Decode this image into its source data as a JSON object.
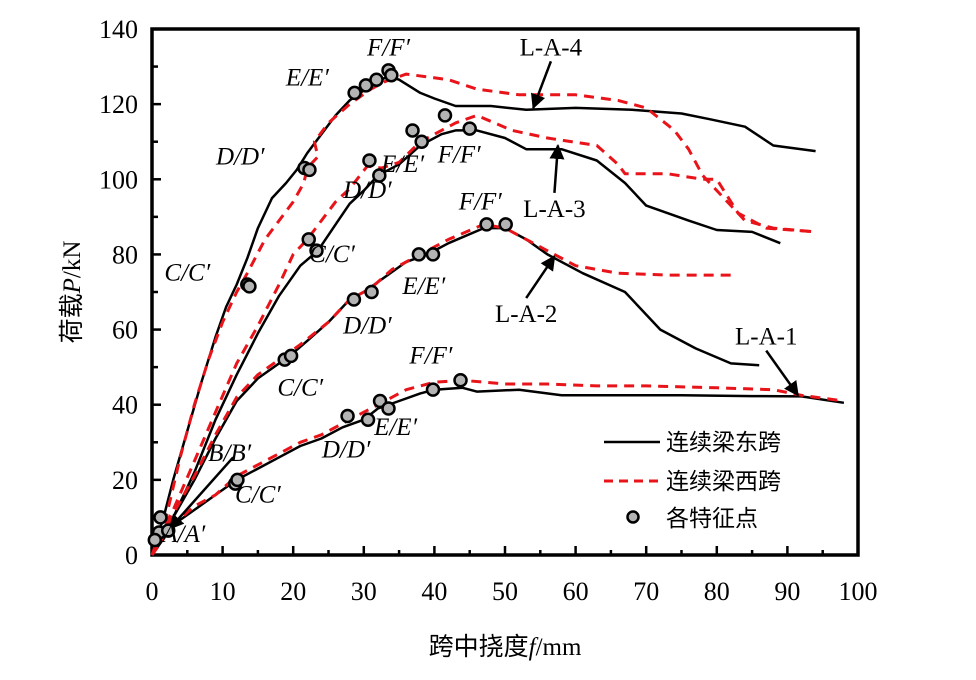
{
  "chart_data": {
    "type": "line",
    "title": "",
    "xlabel_prefix": "跨中挠度",
    "xlabel_var": "f",
    "xlabel_unit": "/mm",
    "ylabel_prefix": "荷载",
    "ylabel_var": "P",
    "ylabel_unit": "/kN",
    "xlim": [
      0,
      100
    ],
    "ylim": [
      0,
      140
    ],
    "xticks": [
      0,
      10,
      20,
      30,
      40,
      50,
      60,
      70,
      80,
      90,
      100
    ],
    "yticks": [
      0,
      20,
      40,
      60,
      80,
      100,
      120,
      140
    ],
    "grid": false,
    "legend_position": "bottom-right",
    "legend": [
      {
        "label": "连续梁东跨",
        "style": "solid",
        "color": "#000000"
      },
      {
        "label": "连续梁西跨",
        "style": "dashed",
        "color": "#e8141a"
      },
      {
        "label": "各特征点",
        "style": "marker",
        "color": "#b4b4b4"
      }
    ],
    "series": [
      {
        "name": "L-A-4 东跨",
        "specimen": "L-A-4",
        "span": "east",
        "style": "solid",
        "color": "#000000",
        "points": [
          [
            0,
            0
          ],
          [
            0.5,
            4
          ],
          [
            1.5,
            9
          ],
          [
            3,
            20
          ],
          [
            5,
            33
          ],
          [
            7,
            46
          ],
          [
            9,
            58
          ],
          [
            10.5,
            66
          ],
          [
            12,
            72
          ],
          [
            13.5,
            79
          ],
          [
            15,
            87
          ],
          [
            17,
            95
          ],
          [
            19,
            99
          ],
          [
            20.5,
            102.5
          ],
          [
            22,
            107
          ],
          [
            24,
            112
          ],
          [
            26,
            117
          ],
          [
            28,
            121
          ],
          [
            29.5,
            123
          ],
          [
            31,
            125
          ],
          [
            32.5,
            126.5
          ],
          [
            33.5,
            127.5
          ],
          [
            35,
            126.5
          ],
          [
            38,
            123
          ],
          [
            40,
            121.5
          ],
          [
            43,
            119.5
          ],
          [
            48,
            119.5
          ],
          [
            53,
            118.5
          ],
          [
            60,
            119
          ],
          [
            68,
            118.5
          ],
          [
            75,
            117.5
          ],
          [
            79,
            116
          ],
          [
            84,
            114
          ],
          [
            88,
            109
          ],
          [
            94,
            107.5
          ]
        ]
      },
      {
        "name": "L-A-4 西跨",
        "specimen": "L-A-4",
        "span": "west",
        "style": "dashed",
        "color": "#e8141a",
        "points": [
          [
            0,
            0
          ],
          [
            0.8,
            4
          ],
          [
            2,
            10
          ],
          [
            4,
            26
          ],
          [
            6,
            40
          ],
          [
            8,
            52
          ],
          [
            10,
            62
          ],
          [
            12,
            70
          ],
          [
            13.5,
            75
          ],
          [
            16,
            84
          ],
          [
            18,
            89
          ],
          [
            20,
            94
          ],
          [
            21.5,
            99
          ],
          [
            22,
            103
          ],
          [
            23.5,
            106
          ],
          [
            23,
            110
          ],
          [
            25,
            115
          ],
          [
            28,
            120
          ],
          [
            31,
            124
          ],
          [
            33,
            126
          ],
          [
            36,
            128
          ],
          [
            42,
            126.5
          ],
          [
            46,
            124
          ],
          [
            52,
            122.5
          ],
          [
            60,
            122.5
          ],
          [
            66,
            121
          ],
          [
            70,
            119
          ],
          [
            74,
            113
          ],
          [
            76,
            108
          ],
          [
            78,
            101
          ],
          [
            81,
            95
          ],
          [
            84,
            89
          ],
          [
            88,
            87
          ],
          [
            94,
            86
          ]
        ]
      },
      {
        "name": "L-A-3 东跨",
        "specimen": "L-A-3",
        "span": "east",
        "style": "solid",
        "color": "#000000",
        "points": [
          [
            0,
            0
          ],
          [
            1,
            4
          ],
          [
            3,
            10
          ],
          [
            6,
            22
          ],
          [
            9,
            36
          ],
          [
            12,
            48
          ],
          [
            15,
            59
          ],
          [
            18,
            69
          ],
          [
            21,
            77
          ],
          [
            23.5,
            81
          ],
          [
            26,
            88
          ],
          [
            28,
            93.5
          ],
          [
            30,
            97
          ],
          [
            32,
            101
          ],
          [
            35,
            104
          ],
          [
            38,
            109
          ],
          [
            41,
            112
          ],
          [
            43,
            113
          ],
          [
            46,
            113
          ],
          [
            50,
            111
          ],
          [
            53,
            108
          ],
          [
            58,
            108
          ],
          [
            63,
            105
          ],
          [
            67,
            99
          ],
          [
            70,
            93
          ],
          [
            76,
            89
          ],
          [
            80,
            86.5
          ],
          [
            85,
            86
          ],
          [
            89,
            83
          ]
        ]
      },
      {
        "name": "L-A-3 西跨",
        "specimen": "L-A-3",
        "span": "west",
        "style": "dashed",
        "color": "#e8141a",
        "points": [
          [
            0,
            0
          ],
          [
            1,
            5
          ],
          [
            3,
            12
          ],
          [
            6,
            25
          ],
          [
            9,
            38
          ],
          [
            12,
            51
          ],
          [
            15,
            61
          ],
          [
            18,
            72
          ],
          [
            20,
            80
          ],
          [
            22,
            84
          ],
          [
            24,
            89
          ],
          [
            26,
            94
          ],
          [
            28,
            97.5
          ],
          [
            30.5,
            103.5
          ],
          [
            32.5,
            103
          ],
          [
            35,
            104.5
          ],
          [
            38,
            110
          ],
          [
            40,
            112
          ],
          [
            43,
            115
          ],
          [
            46,
            117
          ],
          [
            51,
            113
          ],
          [
            56,
            111
          ],
          [
            63,
            109
          ],
          [
            66,
            104
          ],
          [
            67,
            101.5
          ],
          [
            73,
            101.5
          ],
          [
            78,
            100
          ],
          [
            80,
            100
          ],
          [
            83,
            91
          ],
          [
            87,
            87
          ],
          [
            94,
            86
          ]
        ]
      },
      {
        "name": "L-A-2 东跨",
        "specimen": "L-A-2",
        "span": "east",
        "style": "solid",
        "color": "#000000",
        "points": [
          [
            0,
            0
          ],
          [
            1.5,
            5
          ],
          [
            3,
            10
          ],
          [
            6,
            20
          ],
          [
            9,
            31
          ],
          [
            12,
            41
          ],
          [
            15,
            47
          ],
          [
            18,
            51
          ],
          [
            19.5,
            53
          ],
          [
            22,
            57
          ],
          [
            25,
            62
          ],
          [
            28,
            68
          ],
          [
            30,
            70
          ],
          [
            33,
            74
          ],
          [
            36,
            78
          ],
          [
            39,
            80
          ],
          [
            42,
            83
          ],
          [
            47,
            87
          ],
          [
            50,
            87
          ],
          [
            53,
            84
          ],
          [
            56,
            80
          ],
          [
            61,
            75
          ],
          [
            67,
            70
          ],
          [
            72,
            60
          ],
          [
            77,
            55
          ],
          [
            82,
            51
          ],
          [
            86,
            50.5
          ]
        ]
      },
      {
        "name": "L-A-2 西跨",
        "specimen": "L-A-2",
        "span": "west",
        "style": "dashed",
        "color": "#e8141a",
        "points": [
          [
            0,
            0
          ],
          [
            1.5,
            5
          ],
          [
            3,
            11
          ],
          [
            6,
            21
          ],
          [
            9,
            32
          ],
          [
            12,
            42
          ],
          [
            15,
            48
          ],
          [
            18,
            52
          ],
          [
            21,
            56
          ],
          [
            25,
            62
          ],
          [
            28,
            68
          ],
          [
            31,
            71
          ],
          [
            34,
            76
          ],
          [
            38,
            80
          ],
          [
            42,
            84
          ],
          [
            47,
            88
          ],
          [
            50,
            87
          ],
          [
            55,
            82
          ],
          [
            60,
            77
          ],
          [
            66,
            75
          ],
          [
            73,
            74.5
          ],
          [
            82,
            74.5
          ]
        ]
      },
      {
        "name": "L-A-1 东跨",
        "specimen": "L-A-1",
        "span": "east",
        "style": "solid",
        "color": "#000000",
        "points": [
          [
            0,
            0
          ],
          [
            1.5,
            4
          ],
          [
            3,
            8
          ],
          [
            6,
            12
          ],
          [
            9,
            16
          ],
          [
            12,
            20
          ],
          [
            15,
            23
          ],
          [
            18,
            26
          ],
          [
            21,
            29
          ],
          [
            24,
            31
          ],
          [
            27,
            34
          ],
          [
            30,
            36
          ],
          [
            32,
            39
          ],
          [
            35,
            41
          ],
          [
            38,
            43
          ],
          [
            40,
            44
          ],
          [
            44,
            44.5
          ],
          [
            46,
            43.5
          ],
          [
            52,
            44
          ],
          [
            58,
            42.5
          ],
          [
            65,
            42.5
          ],
          [
            75,
            42.5
          ],
          [
            85,
            42.3
          ],
          [
            92,
            42.2
          ],
          [
            98,
            40.5
          ]
        ]
      },
      {
        "name": "L-A-1 西跨",
        "specimen": "L-A-1",
        "span": "west",
        "style": "dashed",
        "color": "#e8141a",
        "points": [
          [
            0,
            0
          ],
          [
            1.5,
            4
          ],
          [
            3,
            8
          ],
          [
            6,
            13
          ],
          [
            9,
            16
          ],
          [
            12,
            21
          ],
          [
            15,
            24
          ],
          [
            18,
            27
          ],
          [
            21,
            30
          ],
          [
            24,
            32
          ],
          [
            27,
            35
          ],
          [
            30,
            38
          ],
          [
            33,
            41
          ],
          [
            36,
            44
          ],
          [
            40,
            46
          ],
          [
            44,
            46.5
          ],
          [
            50,
            45.5
          ],
          [
            56,
            45.5
          ],
          [
            63,
            45
          ],
          [
            70,
            45
          ],
          [
            80,
            44.5
          ],
          [
            88,
            44
          ],
          [
            92,
            42.5
          ],
          [
            98,
            41
          ]
        ]
      }
    ],
    "feature_points": [
      [
        1.2,
        10
      ],
      [
        1.0,
        6
      ],
      [
        2.3,
        6.5
      ],
      [
        0.4,
        4
      ],
      [
        13.5,
        72
      ],
      [
        13.8,
        71.5
      ],
      [
        21.6,
        103
      ],
      [
        22.3,
        102.5
      ],
      [
        28.7,
        123
      ],
      [
        30.3,
        125
      ],
      [
        31.8,
        126.5
      ],
      [
        33.5,
        129
      ],
      [
        33.9,
        127.7
      ],
      [
        22.2,
        84
      ],
      [
        23.3,
        81
      ],
      [
        30.8,
        105
      ],
      [
        32.2,
        101
      ],
      [
        36.9,
        113
      ],
      [
        38.2,
        110
      ],
      [
        41.5,
        117
      ],
      [
        45,
        113.5
      ],
      [
        18.8,
        52
      ],
      [
        19.7,
        53
      ],
      [
        28.6,
        68
      ],
      [
        31.1,
        70
      ],
      [
        37.8,
        80
      ],
      [
        39.8,
        80
      ],
      [
        47.4,
        88
      ],
      [
        50.1,
        88
      ],
      [
        11.8,
        19
      ],
      [
        12.1,
        20
      ],
      [
        27.7,
        37
      ],
      [
        30.6,
        36
      ],
      [
        32.3,
        41
      ],
      [
        33.5,
        39
      ],
      [
        39.8,
        44
      ],
      [
        43.7,
        46.5
      ]
    ],
    "annotations": [
      {
        "text": "A/A′",
        "x": 4.5,
        "y": 3.5
      },
      {
        "text": "B/B′",
        "x": 11,
        "y": 25
      },
      {
        "text": "C/C′",
        "x": 15,
        "y": 14
      },
      {
        "text": "D/D′",
        "x": 27.5,
        "y": 26
      },
      {
        "text": "E/E′",
        "x": 34.5,
        "y": 32
      },
      {
        "text": "F/F′",
        "x": 39.5,
        "y": 51
      },
      {
        "text": "C/C′",
        "x": 21,
        "y": 42.5
      },
      {
        "text": "D/D′",
        "x": 30.5,
        "y": 59
      },
      {
        "text": "E/E′",
        "x": 38.5,
        "y": 69.5
      },
      {
        "text": "F/F′",
        "x": 46.5,
        "y": 92
      },
      {
        "text": "C/C′",
        "x": 25.5,
        "y": 78
      },
      {
        "text": "D/D′",
        "x": 30.5,
        "y": 95
      },
      {
        "text": "E/E′",
        "x": 35.5,
        "y": 102
      },
      {
        "text": "F/F′",
        "x": 43.5,
        "y": 104.5
      },
      {
        "text": "C/C′",
        "x": 5,
        "y": 73
      },
      {
        "text": "D/D′",
        "x": 12.5,
        "y": 104
      },
      {
        "text": "E/E′",
        "x": 22,
        "y": 125
      },
      {
        "text": "F/F′",
        "x": 33.5,
        "y": 133
      }
    ],
    "series_labels": [
      {
        "text": "L-A-4",
        "x": 56.5,
        "y": 133,
        "arrow_to": [
          54,
          119
        ]
      },
      {
        "text": "L-A-3",
        "x": 57,
        "y": 90,
        "arrow_to": [
          57.5,
          109
        ]
      },
      {
        "text": "L-A-2",
        "x": 53,
        "y": 62,
        "arrow_to": [
          57,
          79.5
        ]
      },
      {
        "text": "L-A-1",
        "x": 87,
        "y": 56,
        "arrow_to": [
          91.5,
          42.5
        ]
      },
      {
        "text": "",
        "x": 11.5,
        "y": 26,
        "arrow_to": [
          2.5,
          7
        ]
      }
    ]
  }
}
